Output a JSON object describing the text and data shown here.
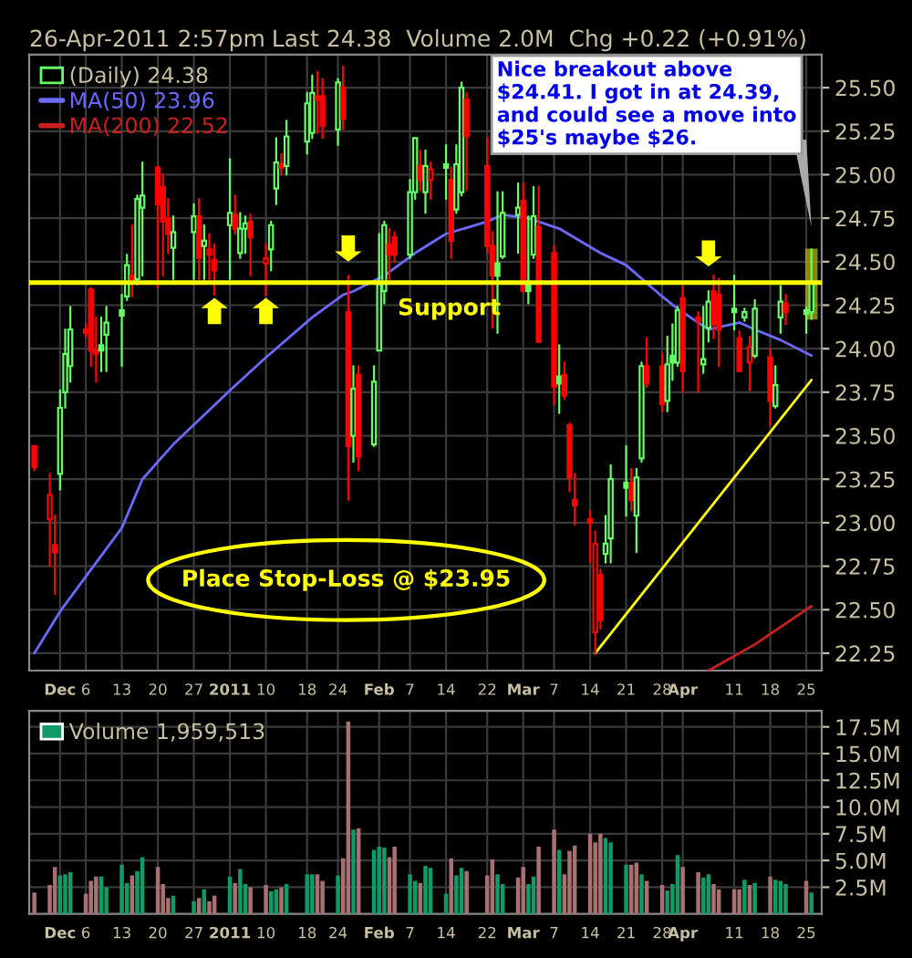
{
  "chart_data": [
    {
      "type": "candlestick",
      "subtitle": "26-Apr-2011 2:57pm",
      "x": [
        "2010-11-26",
        "2010-11-29",
        "2010-11-30",
        "2010-12-01",
        "2010-12-02",
        "2010-12-03",
        "2010-12-06",
        "2010-12-07",
        "2010-12-08",
        "2010-12-09",
        "2010-12-10",
        "2010-12-13",
        "2010-12-14",
        "2010-12-15",
        "2010-12-16",
        "2010-12-17",
        "2010-12-20",
        "2010-12-21",
        "2010-12-22",
        "2010-12-23",
        "2010-12-27",
        "2010-12-28",
        "2010-12-29",
        "2010-12-30",
        "2010-12-31",
        "2011-01-03",
        "2011-01-04",
        "2011-01-05",
        "2011-01-06",
        "2011-01-07",
        "2011-01-10",
        "2011-01-11",
        "2011-01-12",
        "2011-01-13",
        "2011-01-14",
        "2011-01-18",
        "2011-01-19",
        "2011-01-20",
        "2011-01-21",
        "2011-01-24",
        "2011-01-25",
        "2011-01-26",
        "2011-01-27",
        "2011-01-28",
        "2011-01-31",
        "2011-02-01",
        "2011-02-02",
        "2011-02-03",
        "2011-02-04",
        "2011-02-07",
        "2011-02-08",
        "2011-02-09",
        "2011-02-10",
        "2011-02-11",
        "2011-02-14",
        "2011-02-15",
        "2011-02-16",
        "2011-02-17",
        "2011-02-18",
        "2011-02-22",
        "2011-02-23",
        "2011-02-24",
        "2011-02-25",
        "2011-02-28",
        "2011-03-01",
        "2011-03-02",
        "2011-03-03",
        "2011-03-04",
        "2011-03-07",
        "2011-03-08",
        "2011-03-09",
        "2011-03-10",
        "2011-03-11",
        "2011-03-14",
        "2011-03-15",
        "2011-03-16",
        "2011-03-17",
        "2011-03-18",
        "2011-03-21",
        "2011-03-22",
        "2011-03-23",
        "2011-03-24",
        "2011-03-25",
        "2011-03-28",
        "2011-03-29",
        "2011-03-30",
        "2011-03-31",
        "2011-04-01",
        "2011-04-04",
        "2011-04-05",
        "2011-04-06",
        "2011-04-07",
        "2011-04-08",
        "2011-04-11",
        "2011-04-12",
        "2011-04-13",
        "2011-04-14",
        "2011-04-15",
        "2011-04-18",
        "2011-04-19",
        "2011-04-20",
        "2011-04-21",
        "2011-04-25",
        "2011-04-26"
      ],
      "series": [
        {
          "type": "candlestick",
          "name": "(Daily) 24.38",
          "ohlc": [
            [
              23.44,
              23.44,
              23.3,
              23.32
            ],
            [
              23.02,
              23.28,
              22.75,
              23.16
            ],
            [
              22.87,
              23.04,
              22.59,
              22.83
            ],
            [
              23.28,
              23.76,
              23.19,
              23.66
            ],
            [
              23.75,
              24.11,
              23.66,
              23.97
            ],
            [
              23.9,
              24.24,
              23.81,
              24.11
            ],
            [
              24.11,
              24.14,
              24.07,
              24.09
            ],
            [
              24.34,
              24.35,
              23.9,
              23.99
            ],
            [
              23.99,
              24.18,
              23.81,
              23.97
            ],
            [
              24.02,
              24.18,
              23.87,
              23.99
            ],
            [
              24.08,
              24.24,
              23.87,
              24.15
            ],
            [
              24.22,
              24.31,
              23.9,
              24.19
            ],
            [
              24.3,
              24.54,
              24.28,
              24.48
            ],
            [
              24.42,
              24.71,
              24.3,
              24.39
            ],
            [
              24.4,
              24.88,
              24.37,
              24.86
            ],
            [
              24.81,
              25.07,
              24.42,
              24.88
            ],
            [
              25.04,
              25.05,
              24.35,
              24.83
            ],
            [
              24.93,
              25.0,
              24.42,
              24.73
            ],
            [
              24.75,
              24.86,
              24.55,
              24.66
            ],
            [
              24.58,
              24.76,
              24.4,
              24.67
            ],
            [
              24.67,
              24.83,
              24.4,
              24.76
            ],
            [
              24.76,
              24.86,
              24.4,
              24.52
            ],
            [
              24.59,
              24.71,
              24.4,
              24.62
            ],
            [
              24.57,
              24.66,
              24.4,
              24.54
            ],
            [
              24.51,
              24.6,
              24.31,
              24.45
            ],
            [
              24.71,
              25.09,
              24.4,
              24.78
            ],
            [
              24.77,
              24.88,
              24.66,
              24.69
            ],
            [
              24.55,
              24.78,
              24.52,
              24.69
            ],
            [
              24.69,
              24.76,
              24.55,
              24.72
            ],
            [
              24.73,
              24.77,
              24.42,
              24.64
            ],
            [
              24.49,
              24.6,
              24.31,
              24.52
            ],
            [
              24.57,
              24.73,
              24.45,
              24.71
            ],
            [
              24.92,
              25.21,
              24.83,
              25.07
            ],
            [
              25.06,
              25.12,
              25.0,
              25.04
            ],
            [
              25.05,
              25.31,
              25.0,
              25.22
            ],
            [
              25.19,
              25.47,
              25.12,
              25.41
            ],
            [
              25.24,
              25.57,
              25.21,
              25.47
            ],
            [
              25.45,
              25.59,
              25.24,
              25.43
            ],
            [
              25.45,
              25.55,
              25.21,
              25.28
            ],
            [
              25.26,
              25.55,
              25.17,
              25.53
            ],
            [
              25.5,
              25.62,
              25.26,
              25.32
            ],
            [
              24.21,
              24.42,
              23.13,
              23.44
            ],
            [
              23.5,
              23.9,
              23.35,
              23.77
            ],
            [
              23.85,
              23.9,
              23.3,
              23.38
            ],
            [
              23.45,
              23.9,
              23.44,
              23.81
            ],
            [
              23.99,
              24.66,
              23.99,
              24.37
            ],
            [
              24.33,
              24.73,
              24.26,
              24.71
            ],
            [
              24.6,
              24.69,
              24.38,
              24.54
            ],
            [
              24.64,
              24.67,
              24.5,
              24.54
            ],
            [
              24.54,
              24.97,
              24.52,
              24.9
            ],
            [
              24.9,
              25.21,
              24.86,
              25.21
            ],
            [
              25.05,
              25.14,
              24.91,
              24.97
            ],
            [
              24.9,
              25.14,
              24.78,
              25.05
            ],
            [
              24.97,
              25.07,
              24.86,
              25.03
            ],
            [
              25.06,
              25.17,
              24.86,
              25.04
            ],
            [
              24.97,
              25.04,
              24.52,
              24.62
            ],
            [
              24.8,
              25.17,
              24.78,
              25.06
            ],
            [
              24.9,
              25.53,
              24.88,
              25.5
            ],
            [
              25.43,
              25.47,
              24.91,
              25.22
            ],
            [
              25.05,
              25.21,
              24.55,
              24.59
            ],
            [
              24.59,
              24.67,
              24.12,
              24.42
            ],
            [
              24.49,
              24.9,
              24.09,
              24.42
            ],
            [
              24.53,
              24.9,
              24.52,
              24.78
            ],
            [
              24.77,
              24.95,
              24.55,
              24.81
            ],
            [
              24.85,
              24.95,
              24.33,
              24.33
            ],
            [
              24.37,
              24.76,
              24.26,
              24.33
            ],
            [
              24.54,
              24.93,
              24.52,
              24.76
            ],
            [
              24.7,
              24.93,
              24.04,
              24.04
            ],
            [
              24.55,
              24.59,
              23.68,
              23.78
            ],
            [
              23.84,
              24.02,
              23.63,
              23.8
            ],
            [
              23.85,
              23.92,
              23.71,
              23.73
            ],
            [
              23.56,
              23.57,
              23.18,
              23.26
            ],
            [
              23.13,
              23.28,
              22.99,
              23.1
            ],
            [
              23.02,
              23.07,
              22.77,
              23.0
            ],
            [
              22.37,
              22.95,
              22.25,
              22.88
            ],
            [
              22.7,
              22.73,
              22.39,
              22.44
            ],
            [
              22.82,
              23.04,
              22.77,
              22.88
            ],
            [
              22.91,
              23.33,
              22.77,
              23.25
            ],
            [
              23.23,
              23.44,
              23.04,
              23.2
            ],
            [
              23.23,
              23.31,
              23.07,
              23.13
            ],
            [
              23.04,
              23.31,
              22.83,
              23.26
            ],
            [
              23.37,
              23.92,
              23.35,
              23.9
            ],
            [
              23.9,
              24.06,
              23.78,
              23.8
            ],
            [
              23.9,
              23.97,
              23.64,
              23.68
            ],
            [
              23.7,
              24.07,
              23.64,
              23.91
            ],
            [
              23.96,
              24.14,
              23.82,
              23.92
            ],
            [
              23.92,
              24.24,
              23.9,
              24.22
            ],
            [
              24.29,
              24.36,
              23.75,
              23.87
            ],
            [
              24.18,
              24.21,
              23.75,
              24.16
            ],
            [
              23.91,
              24.24,
              23.86,
              23.94
            ],
            [
              24.12,
              24.33,
              24.04,
              24.27
            ],
            [
              24.33,
              24.42,
              24.06,
              24.14
            ],
            [
              24.31,
              24.4,
              23.9,
              24.11
            ],
            [
              24.23,
              24.42,
              24.11,
              24.21
            ],
            [
              24.06,
              24.1,
              23.87,
              23.87
            ],
            [
              24.18,
              24.23,
              24.16,
              24.21
            ],
            [
              23.92,
              24.07,
              23.76,
              24.01
            ],
            [
              23.96,
              24.28,
              23.95,
              24.23
            ],
            [
              23.95,
              24.0,
              23.56,
              23.7
            ],
            [
              23.67,
              23.9,
              23.66,
              23.79
            ],
            [
              24.18,
              24.36,
              24.09,
              24.27
            ],
            [
              24.26,
              24.31,
              24.14,
              24.21
            ],
            [
              24.22,
              24.24,
              24.09,
              24.2
            ],
            [
              24.21,
              24.57,
              24.17,
              24.38
            ]
          ],
          "colors": [
            "#ff0000",
            "#ff0000",
            "#ff0000",
            "#66ff66",
            "#66ff66",
            "#66ff66",
            "#ff0000",
            "#ff0000",
            "#ff0000",
            "#66ff66",
            "#66ff66",
            "#66ff66",
            "#66ff66",
            "#ff0000",
            "#66ff66",
            "#66ff66",
            "#ff0000",
            "#ff0000",
            "#ff0000",
            "#66ff66",
            "#66ff66",
            "#ff0000",
            "#66ff66",
            "#ff0000",
            "#ff0000",
            "#66ff66",
            "#ff0000",
            "#66ff66",
            "#66ff66",
            "#ff0000",
            "#ff0000",
            "#66ff66",
            "#66ff66",
            "#ff0000",
            "#66ff66",
            "#66ff66",
            "#66ff66",
            "#ff0000",
            "#ff0000",
            "#66ff66",
            "#ff0000",
            "#ff0000",
            "#66ff66",
            "#ff0000",
            "#66ff66",
            "#66ff66",
            "#66ff66",
            "#ff0000",
            "#ff0000",
            "#66ff66",
            "#66ff66",
            "#ff0000",
            "#66ff66",
            "#ff0000",
            "#66ff66",
            "#ff0000",
            "#66ff66",
            "#66ff66",
            "#ff0000",
            "#ff0000",
            "#ff0000",
            "#66ff66",
            "#66ff66",
            "#66ff66",
            "#ff0000",
            "#66ff66",
            "#66ff66",
            "#ff0000",
            "#ff0000",
            "#66ff66",
            "#ff0000",
            "#ff0000",
            "#ff0000",
            "#ff0000",
            "#ff0000",
            "#ff0000",
            "#66ff66",
            "#66ff66",
            "#66ff66",
            "#ff0000",
            "#66ff66",
            "#66ff66",
            "#ff0000",
            "#ff0000",
            "#66ff66",
            "#66ff66",
            "#66ff66",
            "#ff0000",
            "#ff0000",
            "#66ff66",
            "#66ff66",
            "#ff0000",
            "#ff0000",
            "#66ff66",
            "#ff0000",
            "#66ff66",
            "#ff0000",
            "#66ff66",
            "#ff0000",
            "#66ff66",
            "#66ff66",
            "#ff0000",
            "#66ff66",
            "#66ff66"
          ]
        },
        {
          "type": "line",
          "name": "MA(50) 23.96",
          "color": "#6a6aff",
          "x": [
            "2010-11-26",
            "2010-12-01",
            "2010-12-07",
            "2010-12-13",
            "2010-12-17",
            "2010-12-23",
            "2011-01-03",
            "2011-01-10",
            "2011-01-19",
            "2011-01-25",
            "2011-01-27",
            "2011-02-02",
            "2011-02-08",
            "2011-02-14",
            "2011-02-22",
            "2011-02-25",
            "2011-03-02",
            "2011-03-08",
            "2011-03-16",
            "2011-03-21",
            "2011-03-28",
            "2011-03-31",
            "2011-04-06",
            "2011-04-12",
            "2011-04-15",
            "2011-04-20",
            "2011-04-26"
          ],
          "values": [
            22.25,
            22.49,
            22.73,
            22.97,
            23.25,
            23.45,
            23.76,
            23.95,
            24.18,
            24.31,
            24.33,
            24.42,
            24.55,
            24.66,
            24.73,
            24.77,
            24.75,
            24.69,
            24.55,
            24.48,
            24.3,
            24.23,
            24.11,
            24.15,
            24.11,
            24.05,
            23.96
          ]
        },
        {
          "type": "line",
          "name": "MA(200) 22.52",
          "color": "#cc2020",
          "x": [
            "2011-04-06",
            "2011-04-15",
            "2011-04-26"
          ],
          "values": [
            22.15,
            22.3,
            22.52
          ]
        },
        {
          "type": "line",
          "color": "#ffff00",
          "x": [
            "2011-03-15",
            "2011-04-26"
          ],
          "values": [
            22.25,
            23.82
          ]
        }
      ],
      "xlim": [
        "2010-11-25",
        "2011-04-28"
      ],
      "xticks": [
        {
          "value": "2010-12-01",
          "label": "Dec"
        },
        {
          "value": "2010-12-06",
          "label": "6"
        },
        {
          "value": "2010-12-13",
          "label": "13"
        },
        {
          "value": "2010-12-20",
          "label": "20"
        },
        {
          "value": "2010-12-27",
          "label": "27"
        },
        {
          "value": "2011-01-03",
          "label": "2011"
        },
        {
          "value": "2011-01-10",
          "label": "10"
        },
        {
          "value": "2011-01-18",
          "label": "18"
        },
        {
          "value": "2011-01-24",
          "label": "24"
        },
        {
          "value": "2011-02-01",
          "label": "Feb"
        },
        {
          "value": "2011-02-07",
          "label": "7"
        },
        {
          "value": "2011-02-14",
          "label": "14"
        },
        {
          "value": "2011-02-22",
          "label": "22"
        },
        {
          "value": "2011-03-01",
          "label": "Mar"
        },
        {
          "value": "2011-03-07",
          "label": "7"
        },
        {
          "value": "2011-03-14",
          "label": "14"
        },
        {
          "value": "2011-03-21",
          "label": "21"
        },
        {
          "value": "2011-03-28",
          "label": "28"
        },
        {
          "value": "2011-04-01",
          "label": "Apr"
        },
        {
          "value": "2011-04-11",
          "label": "11"
        },
        {
          "value": "2011-04-18",
          "label": "18"
        },
        {
          "value": "2011-04-25",
          "label": "25"
        }
      ],
      "ylim": [
        22.15,
        25.69
      ],
      "yticks": [
        {
          "value": 22.25,
          "label": "22.25"
        },
        {
          "value": 22.5,
          "label": "22.50"
        },
        {
          "value": 22.75,
          "label": "22.75"
        },
        {
          "value": 23,
          "label": "23.00"
        },
        {
          "value": 23.25,
          "label": "23.25"
        },
        {
          "value": 23.5,
          "label": "23.50"
        },
        {
          "value": 23.75,
          "label": "23.75"
        },
        {
          "value": 24,
          "label": "24.00"
        },
        {
          "value": 24.25,
          "label": "24.25"
        },
        {
          "value": 24.5,
          "label": "24.50"
        },
        {
          "value": 24.75,
          "label": "24.75"
        },
        {
          "value": 25,
          "label": "25.00"
        },
        {
          "value": 25.25,
          "label": "25.25"
        },
        {
          "value": 25.5,
          "label": "25.50"
        }
      ],
      "ref_lines": [
        {
          "axis": "y",
          "value": 24.38,
          "label": "Support",
          "color": "#ffff00"
        }
      ],
      "annotations": [
        "Nice breakout above $24.41. I got in at 24.39, and could see a move into $25's maybe $26.",
        "Place Stop-Loss @ $23.95",
        "Last 24.38  Volume 2.0M  Chg +0.22 (+0.91%)"
      ],
      "grid": true,
      "legend": "top left"
    },
    {
      "type": "bar",
      "x": [
        "2010-11-26",
        "2010-11-29",
        "2010-11-30",
        "2010-12-01",
        "2010-12-02",
        "2010-12-03",
        "2010-12-06",
        "2010-12-07",
        "2010-12-08",
        "2010-12-09",
        "2010-12-10",
        "2010-12-13",
        "2010-12-14",
        "2010-12-15",
        "2010-12-16",
        "2010-12-17",
        "2010-12-20",
        "2010-12-21",
        "2010-12-22",
        "2010-12-23",
        "2010-12-27",
        "2010-12-28",
        "2010-12-29",
        "2010-12-30",
        "2010-12-31",
        "2011-01-03",
        "2011-01-04",
        "2011-01-05",
        "2011-01-06",
        "2011-01-07",
        "2011-01-10",
        "2011-01-11",
        "2011-01-12",
        "2011-01-13",
        "2011-01-14",
        "2011-01-18",
        "2011-01-19",
        "2011-01-20",
        "2011-01-21",
        "2011-01-24",
        "2011-01-25",
        "2011-01-26",
        "2011-01-27",
        "2011-01-28",
        "2011-01-31",
        "2011-02-01",
        "2011-02-02",
        "2011-02-03",
        "2011-02-04",
        "2011-02-07",
        "2011-02-08",
        "2011-02-09",
        "2011-02-10",
        "2011-02-11",
        "2011-02-14",
        "2011-02-15",
        "2011-02-16",
        "2011-02-17",
        "2011-02-18",
        "2011-02-22",
        "2011-02-23",
        "2011-02-24",
        "2011-02-25",
        "2011-02-28",
        "2011-03-01",
        "2011-03-02",
        "2011-03-03",
        "2011-03-04",
        "2011-03-07",
        "2011-03-08",
        "2011-03-09",
        "2011-03-10",
        "2011-03-11",
        "2011-03-14",
        "2011-03-15",
        "2011-03-16",
        "2011-03-17",
        "2011-03-18",
        "2011-03-21",
        "2011-03-22",
        "2011-03-23",
        "2011-03-24",
        "2011-03-25",
        "2011-03-28",
        "2011-03-29",
        "2011-03-30",
        "2011-03-31",
        "2011-04-01",
        "2011-04-04",
        "2011-04-05",
        "2011-04-06",
        "2011-04-07",
        "2011-04-08",
        "2011-04-11",
        "2011-04-12",
        "2011-04-13",
        "2011-04-14",
        "2011-04-15",
        "2011-04-18",
        "2011-04-19",
        "2011-04-20",
        "2011-04-21",
        "2011-04-25",
        "2011-04-26"
      ],
      "series": [
        {
          "name": "Volume 1,959,513",
          "values": [
            2.0,
            2.7,
            4.4,
            3.6,
            3.7,
            3.9,
            1.9,
            3.1,
            3.5,
            3.5,
            2.5,
            4.6,
            2.9,
            3.6,
            4.0,
            5.3,
            4.4,
            2.8,
            1.5,
            1.7,
            1.2,
            1.5,
            2.3,
            1.2,
            1.7,
            3.5,
            2.9,
            4.2,
            2.8,
            2.5,
            2.7,
            2.1,
            2.3,
            2.5,
            2.8,
            3.7,
            3.7,
            3.7,
            3.1,
            3.6,
            5.2,
            18.0,
            7.9,
            8.0,
            6.0,
            6.3,
            6.2,
            5.3,
            6.3,
            3.7,
            3.1,
            2.9,
            4.5,
            4.3,
            1.9,
            5.2,
            3.6,
            4.3,
            4.0,
            3.6,
            5.1,
            3.7,
            2.8,
            3.4,
            4.4,
            2.8,
            3.5,
            6.3,
            7.9,
            6.0,
            3.7,
            5.9,
            6.4,
            7.5,
            6.7,
            7.5,
            7.1,
            6.7,
            4.6,
            4.6,
            4.8,
            3.7,
            3.1,
            2.7,
            2.2,
            2.8,
            5.5,
            4.4,
            3.9,
            3.4,
            3.7,
            2.8,
            2.3,
            2.3,
            2.3,
            3.2,
            2.7,
            2.9,
            3.5,
            3.2,
            3.1,
            2.8,
            3.1,
            2.0
          ],
          "colors": [
            "#a87070",
            "#a87070",
            "#a87070",
            "#0f9a66",
            "#0f9a66",
            "#0f9a66",
            "#a87070",
            "#a87070",
            "#a87070",
            "#0f9a66",
            "#0f9a66",
            "#0f9a66",
            "#0f9a66",
            "#a87070",
            "#0f9a66",
            "#0f9a66",
            "#a87070",
            "#a87070",
            "#a87070",
            "#0f9a66",
            "#0f9a66",
            "#a87070",
            "#0f9a66",
            "#a87070",
            "#a87070",
            "#0f9a66",
            "#a87070",
            "#0f9a66",
            "#0f9a66",
            "#a87070",
            "#a87070",
            "#0f9a66",
            "#0f9a66",
            "#a87070",
            "#0f9a66",
            "#0f9a66",
            "#0f9a66",
            "#a87070",
            "#a87070",
            "#0f9a66",
            "#a87070",
            "#a87070",
            "#0f9a66",
            "#a87070",
            "#0f9a66",
            "#0f9a66",
            "#0f9a66",
            "#a87070",
            "#a87070",
            "#0f9a66",
            "#0f9a66",
            "#a87070",
            "#0f9a66",
            "#0f9a66",
            "#0f9a66",
            "#a87070",
            "#0f9a66",
            "#0f9a66",
            "#a87070",
            "#a87070",
            "#a87070",
            "#0f9a66",
            "#0f9a66",
            "#a87070",
            "#a87070",
            "#0f9a66",
            "#0f9a66",
            "#a87070",
            "#a87070",
            "#0f9a66",
            "#a87070",
            "#a87070",
            "#a87070",
            "#a87070",
            "#a87070",
            "#a87070",
            "#0f9a66",
            "#0f9a66",
            "#0f9a66",
            "#a87070",
            "#a87070",
            "#0f9a66",
            "#a87070",
            "#a87070",
            "#0f9a66",
            "#0f9a66",
            "#0f9a66",
            "#a87070",
            "#a87070",
            "#0f9a66",
            "#0f9a66",
            "#a87070",
            "#a87070",
            "#a87070",
            "#a87070",
            "#0f9a66",
            "#a87070",
            "#0f9a66",
            "#a87070",
            "#0f9a66",
            "#0f9a66",
            "#0f9a66",
            "#a87070",
            "#0f9a66"
          ]
        }
      ],
      "xlim": [
        "2010-11-25",
        "2011-04-28"
      ],
      "xticks": [
        {
          "value": "2010-12-01",
          "label": "Dec"
        },
        {
          "value": "2010-12-06",
          "label": "6"
        },
        {
          "value": "2010-12-13",
          "label": "13"
        },
        {
          "value": "2010-12-20",
          "label": "20"
        },
        {
          "value": "2010-12-27",
          "label": "27"
        },
        {
          "value": "2011-01-03",
          "label": "2011"
        },
        {
          "value": "2011-01-10",
          "label": "10"
        },
        {
          "value": "2011-01-18",
          "label": "18"
        },
        {
          "value": "2011-01-24",
          "label": "24"
        },
        {
          "value": "2011-02-01",
          "label": "Feb"
        },
        {
          "value": "2011-02-07",
          "label": "7"
        },
        {
          "value": "2011-02-14",
          "label": "14"
        },
        {
          "value": "2011-02-22",
          "label": "22"
        },
        {
          "value": "2011-03-01",
          "label": "Mar"
        },
        {
          "value": "2011-03-07",
          "label": "7"
        },
        {
          "value": "2011-03-14",
          "label": "14"
        },
        {
          "value": "2011-03-21",
          "label": "21"
        },
        {
          "value": "2011-03-28",
          "label": "28"
        },
        {
          "value": "2011-04-01",
          "label": "Apr"
        },
        {
          "value": "2011-04-11",
          "label": "11"
        },
        {
          "value": "2011-04-18",
          "label": "18"
        },
        {
          "value": "2011-04-25",
          "label": "25"
        }
      ],
      "ylim": [
        0,
        19
      ],
      "yticks": [
        {
          "value": 2.5,
          "label": "2.5M"
        },
        {
          "value": 5,
          "label": "5.0M"
        },
        {
          "value": 7.5,
          "label": "7.5M"
        },
        {
          "value": 10,
          "label": "10.0M"
        },
        {
          "value": 12.5,
          "label": "12.5M"
        },
        {
          "value": 15,
          "label": "15.0M"
        },
        {
          "value": 17.5,
          "label": "17.5M"
        }
      ],
      "grid": true,
      "legend": "top left"
    }
  ]
}
